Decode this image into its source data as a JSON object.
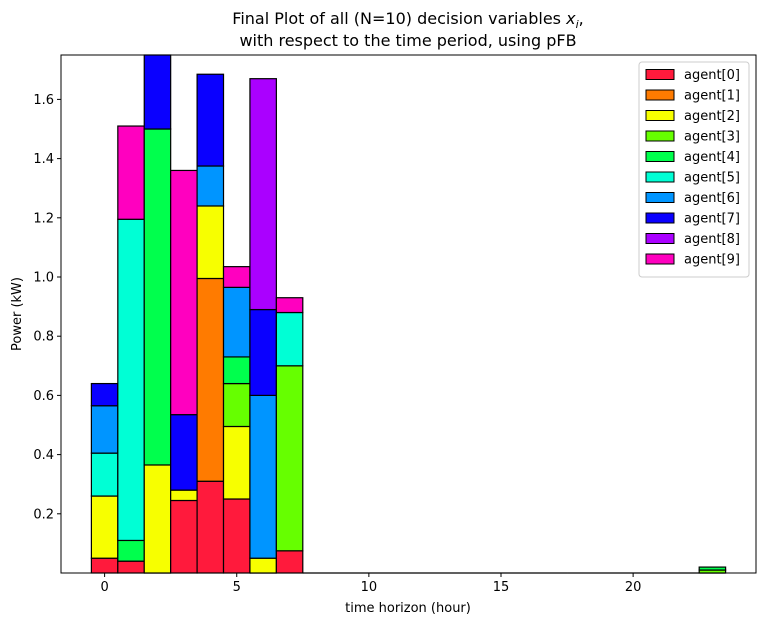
{
  "chart_data": {
    "type": "bar",
    "stacked": true,
    "title": "Final Plot of all (N=10) decision variables ",
    "title_var": "x",
    "title_sub": "i",
    "title_suffix": ",",
    "title_line2": "with respect to the time period, using pFB",
    "xlabel": "time horizon (hour)",
    "ylabel": "Power (kW)",
    "xlim": [
      -1.65,
      24.65
    ],
    "ylim": [
      0,
      1.75
    ],
    "xticks": [
      0,
      5,
      10,
      15,
      20
    ],
    "xtick_labels": [
      "0",
      "5",
      "10",
      "15",
      "20"
    ],
    "yticks": [
      0.2,
      0.4,
      0.6,
      0.8,
      1.0,
      1.2,
      1.4,
      1.6
    ],
    "ytick_labels": [
      "0.2",
      "0.4",
      "0.6",
      "0.8",
      "1.0",
      "1.2",
      "1.4",
      "1.6"
    ],
    "grid": false,
    "legend_position": "top-right",
    "x": [
      0,
      1,
      2,
      3,
      4,
      5,
      6,
      7,
      8,
      9,
      10,
      11,
      12,
      13,
      14,
      15,
      16,
      17,
      18,
      19,
      20,
      21,
      22,
      23
    ],
    "series": [
      {
        "name": "agent[0]",
        "color": "#ff1a3c",
        "values": [
          0.05,
          0.04,
          0.0,
          0.245,
          0.31,
          0.25,
          0.0,
          0.075,
          0,
          0,
          0,
          0,
          0,
          0,
          0,
          0,
          0,
          0,
          0,
          0,
          0,
          0,
          0,
          0
        ]
      },
      {
        "name": "agent[1]",
        "color": "#ff7b00",
        "values": [
          0.0,
          0.0,
          0.0,
          0.0,
          0.685,
          0.0,
          0.0,
          0.0,
          0,
          0,
          0,
          0,
          0,
          0,
          0,
          0,
          0,
          0,
          0,
          0,
          0,
          0,
          0,
          0
        ]
      },
      {
        "name": "agent[2]",
        "color": "#f7ff00",
        "values": [
          0.21,
          0.0,
          0.365,
          0.035,
          0.245,
          0.245,
          0.05,
          0.0,
          0,
          0,
          0,
          0,
          0,
          0,
          0,
          0,
          0,
          0,
          0,
          0,
          0,
          0,
          0,
          0
        ]
      },
      {
        "name": "agent[3]",
        "color": "#66ff00",
        "values": [
          0.0,
          0.0,
          0.0,
          0.0,
          0.0,
          0.145,
          0.0,
          0.625,
          0,
          0,
          0,
          0,
          0,
          0,
          0,
          0,
          0,
          0,
          0,
          0,
          0,
          0,
          0,
          0.01
        ]
      },
      {
        "name": "agent[4]",
        "color": "#00ff4d",
        "values": [
          0.0,
          0.07,
          1.135,
          0.0,
          0.0,
          0.09,
          0.0,
          0.0,
          0,
          0,
          0,
          0,
          0,
          0,
          0,
          0,
          0,
          0,
          0,
          0,
          0,
          0,
          0,
          0.01
        ]
      },
      {
        "name": "agent[5]",
        "color": "#00ffd5",
        "values": [
          0.145,
          1.085,
          0.0,
          0.0,
          0.0,
          0.0,
          0.0,
          0.18,
          0,
          0,
          0,
          0,
          0,
          0,
          0,
          0,
          0,
          0,
          0,
          0,
          0,
          0,
          0,
          0
        ]
      },
      {
        "name": "agent[6]",
        "color": "#0095ff",
        "values": [
          0.16,
          0.0,
          0.0,
          0.0,
          0.135,
          0.235,
          0.55,
          0.0,
          0,
          0,
          0,
          0,
          0,
          0,
          0,
          0,
          0,
          0,
          0,
          0,
          0,
          0,
          0,
          0
        ]
      },
      {
        "name": "agent[7]",
        "color": "#0a00ff",
        "values": [
          0.075,
          0.0,
          0.25,
          0.255,
          0.31,
          0.0,
          0.29,
          0.0,
          0,
          0,
          0,
          0,
          0,
          0,
          0,
          0,
          0,
          0,
          0,
          0,
          0,
          0,
          0,
          0
        ]
      },
      {
        "name": "agent[8]",
        "color": "#aa00ff",
        "values": [
          0.0,
          0.0,
          0.0,
          0.0,
          0.0,
          0.0,
          0.78,
          0.0,
          0,
          0,
          0,
          0,
          0,
          0,
          0,
          0,
          0,
          0,
          0,
          0,
          0,
          0,
          0,
          0
        ]
      },
      {
        "name": "agent[9]",
        "color": "#ff00bf",
        "values": [
          0.0,
          0.315,
          0.0,
          0.825,
          0.0,
          0.07,
          0.0,
          0.05,
          0,
          0,
          0,
          0,
          0,
          0,
          0,
          0,
          0,
          0,
          0,
          0,
          0,
          0,
          0,
          0
        ]
      }
    ]
  }
}
